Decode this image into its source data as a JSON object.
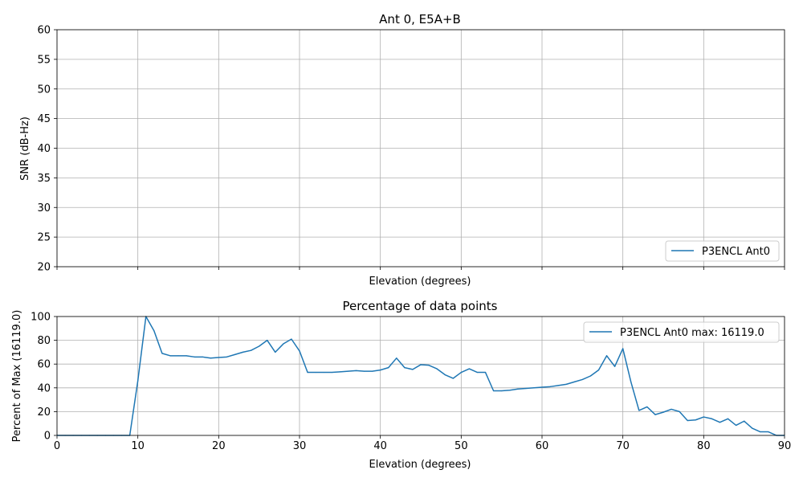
{
  "chart_data": [
    {
      "type": "line",
      "title": "Ant 0, E5A+B",
      "xlabel": "Elevation (degrees)",
      "ylabel": "SNR (dB-Hz)",
      "xlim": [
        0,
        90
      ],
      "ylim": [
        20,
        60
      ],
      "yticks": [
        20,
        25,
        30,
        35,
        40,
        45,
        50,
        55,
        60
      ],
      "xticks": [
        0,
        10,
        20,
        30,
        40,
        50,
        60,
        70,
        80,
        90
      ],
      "x_tick_labels_visible": false,
      "grid": true,
      "legend_position": "lower right",
      "series": [
        {
          "name": "P3ENCL Ant0",
          "color": "#1f77b4",
          "x": [],
          "y": []
        }
      ]
    },
    {
      "type": "line",
      "title": "Percentage of data points",
      "xlabel": "Elevation (degrees)",
      "ylabel": "Percent of Max (16119.0)",
      "xlim": [
        0,
        90
      ],
      "ylim": [
        0,
        100
      ],
      "yticks": [
        0,
        20,
        40,
        60,
        80,
        100
      ],
      "xticks": [
        0,
        10,
        20,
        30,
        40,
        50,
        60,
        70,
        80,
        90
      ],
      "grid": true,
      "legend_position": "upper right",
      "series": [
        {
          "name": "P3ENCL Ant0 max: 16119.0",
          "color": "#1f77b4",
          "x": [
            0,
            1,
            2,
            3,
            4,
            5,
            6,
            7,
            8,
            9,
            10,
            11,
            12,
            13,
            14,
            15,
            16,
            17,
            18,
            19,
            20,
            21,
            22,
            23,
            24,
            25,
            26,
            27,
            28,
            29,
            30,
            31,
            32,
            33,
            34,
            35,
            36,
            37,
            38,
            39,
            40,
            41,
            42,
            43,
            44,
            45,
            46,
            47,
            48,
            49,
            50,
            51,
            52,
            53,
            54,
            55,
            56,
            57,
            58,
            59,
            60,
            61,
            62,
            63,
            64,
            65,
            66,
            67,
            68,
            69,
            70,
            71,
            72,
            73,
            74,
            75,
            76,
            77,
            78,
            79,
            80,
            81,
            82,
            83,
            84,
            85,
            86,
            87,
            88,
            89,
            90
          ],
          "y": [
            0,
            0,
            0,
            0,
            0,
            0,
            0,
            0,
            0,
            0,
            46,
            100,
            88,
            69,
            67,
            67,
            67,
            66,
            66,
            65,
            65.5,
            66,
            68,
            70,
            71.5,
            75,
            80,
            70,
            77,
            81,
            71,
            53,
            53,
            53,
            53,
            53.5,
            54,
            54.5,
            54,
            54,
            55,
            57,
            65,
            57,
            55.5,
            59.5,
            59,
            56,
            51,
            48,
            53,
            56,
            53,
            53,
            37.5,
            37.5,
            38,
            39,
            39.5,
            40,
            40.5,
            41,
            42,
            43,
            45,
            47,
            50,
            55,
            67,
            58,
            73,
            45,
            21,
            24,
            17.5,
            19.5,
            22,
            20,
            12.5,
            13,
            15.5,
            14,
            11,
            14,
            8.5,
            12,
            6,
            3,
            3,
            0,
            0
          ]
        }
      ]
    }
  ]
}
